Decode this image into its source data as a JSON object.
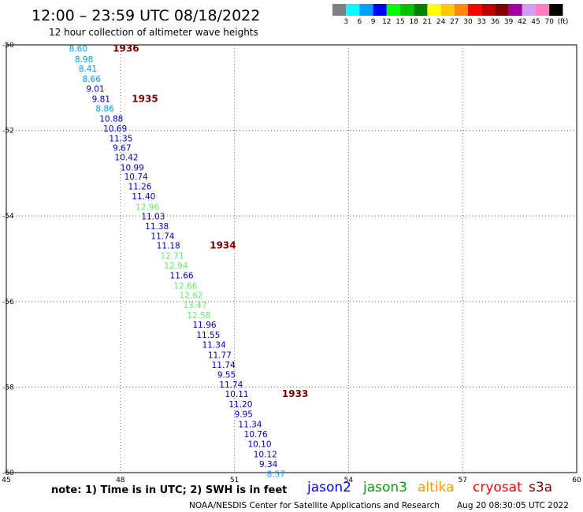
{
  "header": {
    "title": "12:00 – 23:59 UTC 08/18/2022",
    "subtitle": "12 hour collection of altimeter wave heights"
  },
  "colorbar": {
    "unit": "(ft)",
    "bins": [
      {
        "label": "3",
        "color": "#808080"
      },
      {
        "label": "6",
        "color": "#00ffff"
      },
      {
        "label": "9",
        "color": "#00a0ff"
      },
      {
        "label": "12",
        "color": "#0000ff"
      },
      {
        "label": "15",
        "color": "#00ff00"
      },
      {
        "label": "18",
        "color": "#00c000"
      },
      {
        "label": "21",
        "color": "#008000"
      },
      {
        "label": "24",
        "color": "#ffff00"
      },
      {
        "label": "27",
        "color": "#ffc800"
      },
      {
        "label": "30",
        "color": "#ff8c00"
      },
      {
        "label": "33",
        "color": "#ff0000"
      },
      {
        "label": "36",
        "color": "#c00000"
      },
      {
        "label": "39",
        "color": "#800000"
      },
      {
        "label": "42",
        "color": "#a000a0"
      },
      {
        "label": "45",
        "color": "#d0a0f0"
      },
      {
        "label": "70",
        "color": "#ff80c0"
      },
      {
        "label": "",
        "color": "#000000"
      }
    ]
  },
  "chart_data": {
    "type": "scatter",
    "xlim": [
      45,
      60
    ],
    "ylim": [
      -60,
      -50
    ],
    "x_ticks": [
      "45",
      "48",
      "51",
      "54",
      "57",
      "60"
    ],
    "y_ticks": [
      "-50",
      "-52",
      "-54",
      "-56",
      "-58",
      "-60"
    ],
    "grid": true,
    "series": [
      {
        "colors": [
          "#00a0ff",
          "#00a0ff",
          "#00a0ff",
          "#00a0ff",
          "#0000c0",
          "#0000c0",
          "#00a0ff",
          "#0000c0",
          "#0000c0",
          "#0000c0",
          "#0000c0",
          "#0000c0",
          "#0000c0",
          "#0000c0",
          "#0000c0",
          "#0000c0",
          "#66ee66",
          "#0000c0",
          "#0000c0",
          "#0000c0",
          "#0000c0",
          "#66ee66",
          "#66ee66",
          "#0000c0",
          "#66ee66",
          "#66ee66",
          "#66ee66",
          "#66ee66",
          "#0000c0",
          "#0000c0",
          "#0000c0",
          "#0000c0",
          "#0000c0",
          "#0000c0",
          "#0000c0",
          "#0000c0",
          "#0000c0",
          "#0000c0",
          "#0000c0",
          "#0000c0",
          "#0000c0",
          "#0000c0",
          "#0000c0",
          "#00a0ff"
        ],
        "labels": [
          "8.60",
          "8.98",
          "8.41",
          "8.66",
          "9.01",
          "9.81",
          "8.86",
          "10.88",
          "10.69",
          "11.35",
          "9.67",
          "10.42",
          "10.99",
          "10.74",
          "11.26",
          "11.40",
          "12.96",
          "11.03",
          "11.38",
          "11.74",
          "11.18",
          "12.71",
          "12.94",
          "11.66",
          "12.66",
          "12.62",
          "13.47",
          "12.58",
          "11.96",
          "11.55",
          "11.34",
          "11.77",
          "11.74",
          "9.55",
          "11.74",
          "10.11",
          "11.20",
          "9.95",
          "11.34",
          "10.76",
          "10.10",
          "10.12",
          "9.34",
          "8.57"
        ],
        "x": [
          46.65,
          46.8,
          46.9,
          47.0,
          47.1,
          47.25,
          47.35,
          47.45,
          47.55,
          47.7,
          47.8,
          47.85,
          48.0,
          48.1,
          48.2,
          48.3,
          48.4,
          48.55,
          48.65,
          48.8,
          48.95,
          49.05,
          49.15,
          49.3,
          49.4,
          49.55,
          49.65,
          49.75,
          49.9,
          50.0,
          50.15,
          50.3,
          50.4,
          50.55,
          50.6,
          50.75,
          50.85,
          51.0,
          51.1,
          51.25,
          51.35,
          51.5,
          51.65,
          51.85
        ],
        "y": [
          -50.08,
          -50.33,
          -50.55,
          -50.79,
          -51.02,
          -51.26,
          -51.48,
          -51.72,
          -51.95,
          -52.18,
          -52.4,
          -52.62,
          -52.86,
          -53.08,
          -53.31,
          -53.54,
          -53.78,
          -54.01,
          -54.24,
          -54.47,
          -54.69,
          -54.93,
          -55.16,
          -55.39,
          -55.63,
          -55.85,
          -56.08,
          -56.32,
          -56.54,
          -56.78,
          -57.01,
          -57.25,
          -57.48,
          -57.71,
          -57.94,
          -58.16,
          -58.4,
          -58.63,
          -58.87,
          -59.1,
          -59.33,
          -59.57,
          -59.8,
          -60.03
        ]
      }
    ],
    "annotations": [
      {
        "text": "1936",
        "x": 47.8,
        "y": -50.08
      },
      {
        "text": "1935",
        "x": 48.3,
        "y": -51.26
      },
      {
        "text": "1934",
        "x": 50.35,
        "y": -54.69
      },
      {
        "text": "1933",
        "x": 52.25,
        "y": -58.16
      }
    ]
  },
  "footer": {
    "note": "note:  1) Time is in UTC;  2) SWH is in feet",
    "satellites": [
      {
        "name": "jason2",
        "color": "#0000ff"
      },
      {
        "name": "jason3",
        "color": "#00a000"
      },
      {
        "name": "altika",
        "color": "#ff9900"
      },
      {
        "name": "cryosat",
        "color": "#ff0000"
      },
      {
        "name": "s3a",
        "color": "#800000"
      }
    ],
    "credit": "NOAA/NESDIS Center for Satellite Applications and Research",
    "timestamp": "Aug 20 08:30:05 UTC 2022"
  }
}
